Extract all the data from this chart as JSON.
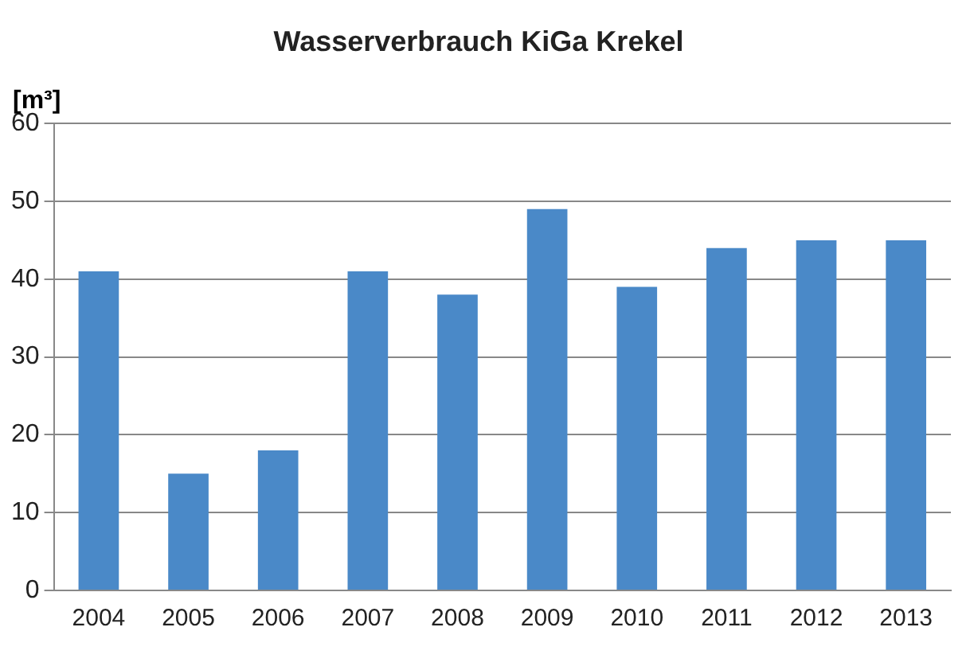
{
  "chart_data": {
    "type": "bar",
    "title": "Wasserverbrauch KiGa Krekel",
    "ylabel": "[m³]",
    "categories": [
      "2004",
      "2005",
      "2006",
      "2007",
      "2008",
      "2009",
      "2010",
      "2011",
      "2012",
      "2013"
    ],
    "values": [
      41,
      15,
      18,
      41,
      38,
      49,
      39,
      44,
      45,
      45
    ],
    "color": "#4a89c8",
    "ylim": [
      0,
      60
    ],
    "yticks": [
      0,
      10,
      20,
      30,
      40,
      50,
      60
    ],
    "grid": "y",
    "legend": false
  }
}
